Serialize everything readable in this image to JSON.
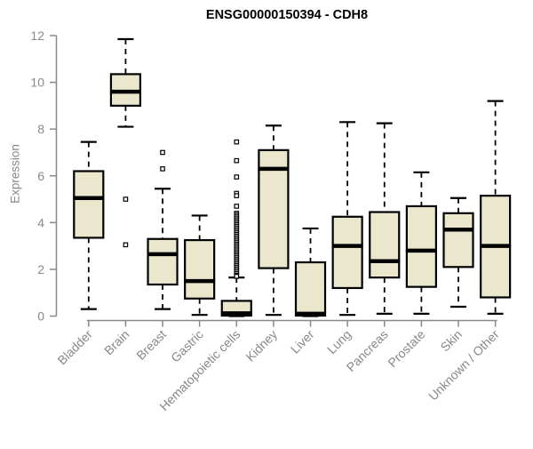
{
  "chart_data": {
    "type": "box",
    "title": "ENSG00000150394 - CDH8",
    "ylabel": "Expression",
    "xlabel": "",
    "ylim": [
      0,
      12
    ],
    "yticks": [
      0,
      2,
      4,
      6,
      8,
      10,
      12
    ],
    "grid": false,
    "legend": "none",
    "colors": {
      "box_fill": "#EBE7CD",
      "box_stroke": "#000000",
      "median": "#000000",
      "whisker": "#000000",
      "outlier_fill": "#ffffff",
      "axis": "#888888",
      "tick_label": "#888888",
      "title": "#000000",
      "background": "#ffffff"
    },
    "categories": [
      "Bladder",
      "Brain",
      "Breast",
      "Gastric",
      "Hematopoietic cells",
      "Kidney",
      "Liver",
      "Lung",
      "Pancreas",
      "Prostate",
      "Skin",
      "Unknown / Other"
    ],
    "boxes": [
      {
        "label": "Bladder",
        "low": 0.3,
        "q1": 3.35,
        "median": 5.05,
        "q3": 6.2,
        "high": 7.45,
        "outliers": []
      },
      {
        "label": "Brain",
        "low": 8.1,
        "q1": 9.0,
        "median": 9.6,
        "q3": 10.35,
        "high": 11.85,
        "outliers": [
          5.0,
          3.05
        ]
      },
      {
        "label": "Breast",
        "low": 0.3,
        "q1": 1.35,
        "median": 2.65,
        "q3": 3.3,
        "high": 5.45,
        "outliers": [
          7.0,
          6.3
        ]
      },
      {
        "label": "Gastric",
        "low": 0.05,
        "q1": 0.75,
        "median": 1.5,
        "q3": 3.25,
        "high": 4.3,
        "outliers": []
      },
      {
        "label": "Hematopoietic cells",
        "low": 0.0,
        "q1": 0.02,
        "median": 0.12,
        "q3": 0.65,
        "high": 1.65,
        "outliers": [
          7.45,
          6.65,
          5.95,
          5.25,
          5.15,
          4.7,
          4.4,
          4.33,
          4.26,
          4.19,
          4.12,
          4.05,
          3.98,
          3.91,
          3.84,
          3.77,
          3.7,
          3.63,
          3.56,
          3.49,
          3.42,
          3.35,
          3.28,
          3.21,
          3.14,
          3.07,
          3.0,
          2.93,
          2.86,
          2.79,
          2.72,
          2.65,
          2.58,
          2.51,
          2.44,
          2.37,
          2.3,
          2.23,
          2.16,
          2.09,
          2.02,
          1.95,
          1.88,
          1.81,
          1.74,
          1.7
        ]
      },
      {
        "label": "Kidney",
        "low": 0.05,
        "q1": 2.05,
        "median": 6.3,
        "q3": 7.1,
        "high": 8.15,
        "outliers": []
      },
      {
        "label": "Liver",
        "low": 0.0,
        "q1": 0.02,
        "median": 0.1,
        "q3": 2.3,
        "high": 3.75,
        "outliers": []
      },
      {
        "label": "Lung",
        "low": 0.05,
        "q1": 1.2,
        "median": 3.0,
        "q3": 4.25,
        "high": 8.3,
        "outliers": []
      },
      {
        "label": "Pancreas",
        "low": 0.1,
        "q1": 1.65,
        "median": 2.35,
        "q3": 4.45,
        "high": 8.25,
        "outliers": []
      },
      {
        "label": "Prostate",
        "low": 0.1,
        "q1": 1.25,
        "median": 2.8,
        "q3": 4.7,
        "high": 6.15,
        "outliers": []
      },
      {
        "label": "Skin",
        "low": 0.4,
        "q1": 2.1,
        "median": 3.7,
        "q3": 4.4,
        "high": 5.05,
        "outliers": []
      },
      {
        "label": "Unknown / Other",
        "low": 0.1,
        "q1": 0.8,
        "median": 3.0,
        "q3": 5.15,
        "high": 9.2,
        "outliers": []
      }
    ]
  }
}
